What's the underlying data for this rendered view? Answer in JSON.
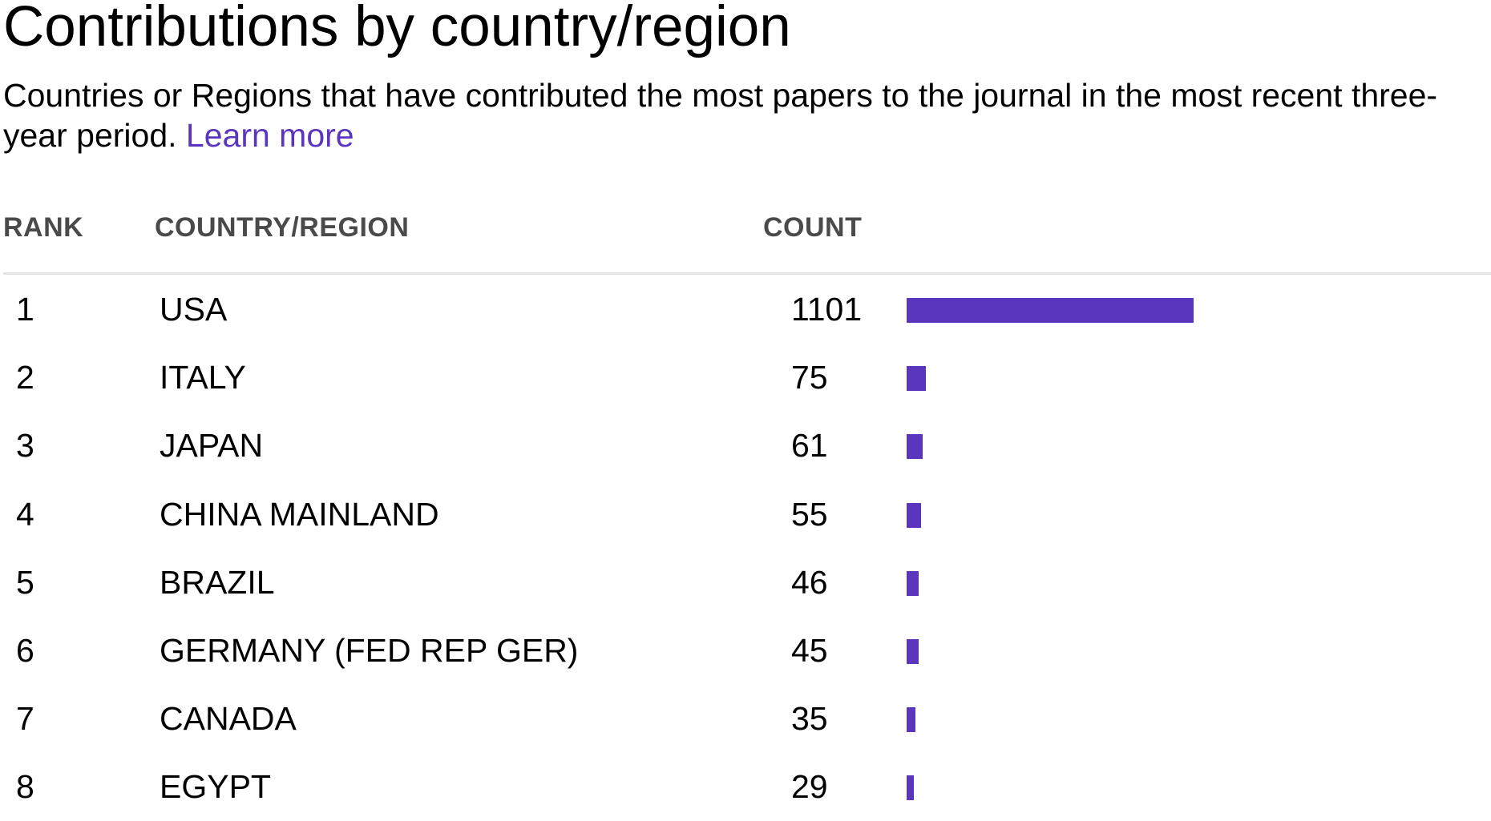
{
  "title": "Contributions by country/region",
  "subtitle": {
    "text": "Countries or Regions that have contributed the most papers to the journal in the most recent three-year period.",
    "link": "Learn more"
  },
  "table": {
    "headers": {
      "rank": "RANK",
      "country": "COUNTRY/REGION",
      "count": "COUNT"
    }
  },
  "colors": {
    "accent": "#5a35bd",
    "text": "#000000",
    "header_text": "#4a4a4a",
    "divider": "#e4e4e4"
  },
  "chart_data": {
    "type": "bar",
    "orientation": "horizontal",
    "title": "Contributions by country/region",
    "categories": [
      "USA",
      "ITALY",
      "JAPAN",
      "CHINA MAINLAND",
      "BRAZIL",
      "GERMANY (FED REP GER)",
      "CANADA",
      "EGYPT"
    ],
    "ranks": [
      "1",
      "2",
      "3",
      "4",
      "5",
      "6",
      "7",
      "8"
    ],
    "values": [
      1101,
      75,
      61,
      55,
      46,
      45,
      35,
      29
    ],
    "xlim": [
      0,
      1101
    ],
    "grid": false,
    "legend": "none"
  }
}
